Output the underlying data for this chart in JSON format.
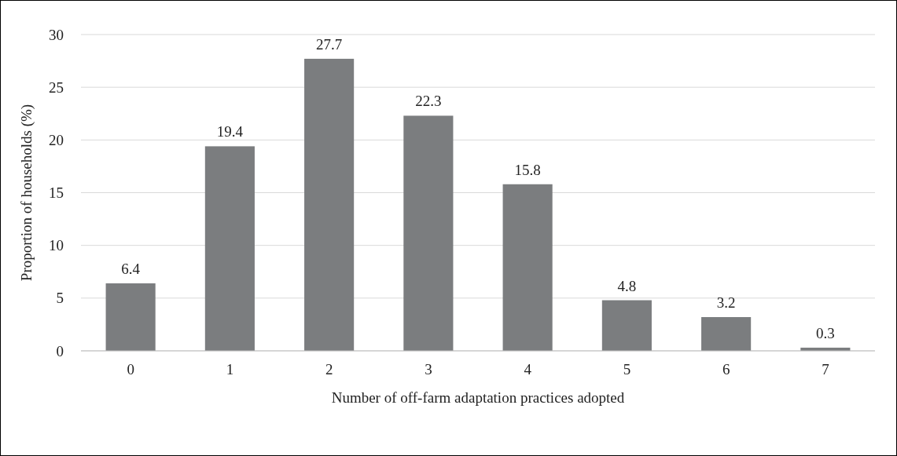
{
  "chart_data": {
    "type": "bar",
    "xlabel": "Number of off-farm adaptation practices adopted",
    "ylabel": "Proportion of households (%)",
    "categories": [
      "0",
      "1",
      "2",
      "3",
      "4",
      "5",
      "6",
      "7"
    ],
    "values": [
      6.4,
      19.4,
      27.7,
      22.3,
      15.8,
      4.8,
      3.2,
      0.3
    ],
    "color": "#7b7d7f",
    "ylim": [
      0,
      30
    ],
    "yticks": [
      0,
      5,
      10,
      15,
      20,
      25,
      30
    ],
    "grid": "y",
    "data_labels": true
  }
}
